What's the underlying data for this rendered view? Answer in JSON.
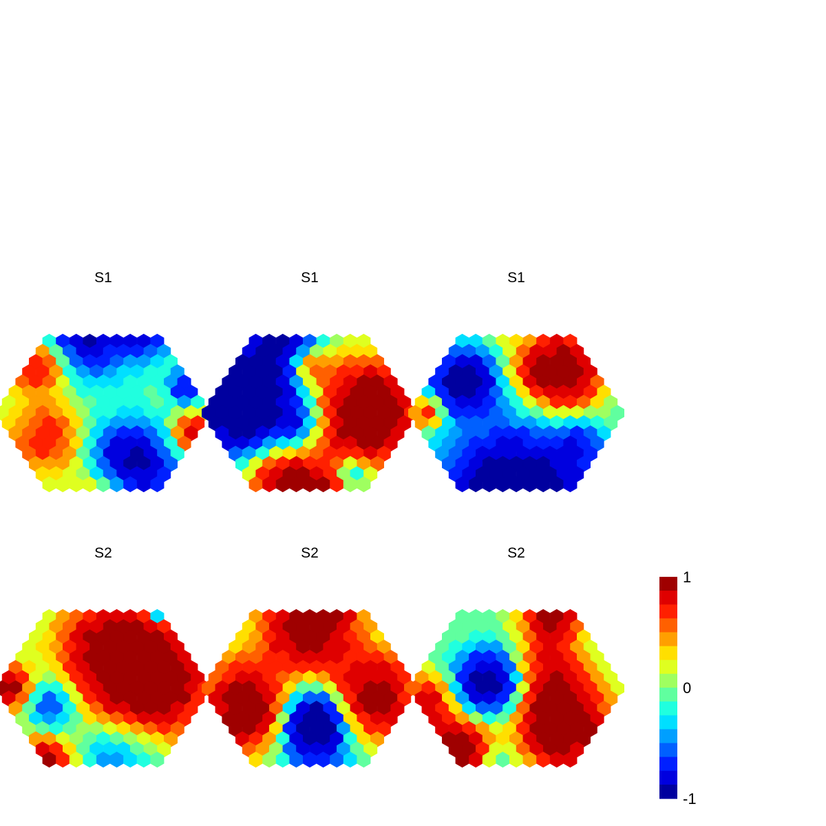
{
  "chart_data": {
    "type": "heatmap",
    "colormap": "jet",
    "colorbar": {
      "min": -1,
      "max": 1,
      "tick_labels": [
        "1",
        "0",
        "-1"
      ],
      "tick_values": [
        1,
        0,
        -1
      ],
      "levels": 16
    },
    "grid": "hexagonal",
    "panels": [
      {
        "title": "S1",
        "hotspots": [
          [
            -0.22,
            -0.85,
            -1.7,
            0.35
          ],
          [
            0.25,
            0.55,
            -1.8,
            0.28
          ],
          [
            -0.62,
            -0.5,
            1.4,
            0.22
          ],
          [
            0.45,
            -0.8,
            -1.0,
            0.18
          ],
          [
            -0.55,
            0.25,
            0.9,
            0.25
          ],
          [
            0.05,
            0.85,
            1.2,
            0.25
          ],
          [
            0.85,
            0.2,
            1.3,
            0.12
          ],
          [
            0.8,
            -0.25,
            -1.0,
            0.12
          ]
        ]
      },
      {
        "title": "S1",
        "hotspots": [
          [
            -0.65,
            -0.15,
            -2.2,
            0.38
          ],
          [
            0.55,
            0.0,
            2.2,
            0.32
          ],
          [
            -0.25,
            -0.85,
            -1.5,
            0.22
          ],
          [
            0.05,
            0.9,
            1.7,
            0.28
          ],
          [
            -0.3,
            0.65,
            1.2,
            0.22
          ],
          [
            0.4,
            0.6,
            -1.0,
            0.12
          ],
          [
            0.0,
            -0.45,
            0.9,
            0.12
          ],
          [
            -0.1,
            0.1,
            -0.6,
            0.15
          ]
        ]
      },
      {
        "title": "S1",
        "hotspots": [
          [
            0.0,
            0.95,
            -2.4,
            0.5
          ],
          [
            -0.5,
            -0.3,
            -1.7,
            0.22
          ],
          [
            0.45,
            -0.4,
            2.0,
            0.25
          ],
          [
            -0.1,
            -0.95,
            1.6,
            0.12
          ],
          [
            0.1,
            -0.4,
            0.4,
            0.14
          ],
          [
            -0.85,
            0.0,
            1.2,
            0.1
          ],
          [
            0.6,
            0.3,
            -0.6,
            0.15
          ]
        ]
      },
      {
        "title": "S2",
        "hotspots": [
          [
            0.15,
            -0.3,
            2.0,
            0.38
          ],
          [
            -0.5,
            0.15,
            -0.9,
            0.2
          ],
          [
            0.1,
            0.7,
            -0.6,
            0.25
          ],
          [
            -0.6,
            0.8,
            2.0,
            0.2
          ],
          [
            -0.9,
            0.0,
            1.6,
            0.15
          ],
          [
            0.6,
            0.0,
            1.4,
            0.3
          ],
          [
            0.55,
            -0.75,
            -1.6,
            0.08
          ],
          [
            0.4,
            -0.2,
            0.7,
            0.18
          ]
        ]
      },
      {
        "title": "S2",
        "hotspots": [
          [
            0.05,
            0.35,
            -2.0,
            0.2
          ],
          [
            0.0,
            -0.6,
            2.0,
            0.3
          ],
          [
            -0.6,
            0.2,
            2.0,
            0.3
          ],
          [
            0.6,
            0.1,
            1.8,
            0.3
          ],
          [
            0.05,
            0.4,
            -0.6,
            0.45
          ],
          [
            0.35,
            -0.9,
            0.8,
            0.12
          ]
        ]
      },
      {
        "title": "S2",
        "hotspots": [
          [
            -0.25,
            -0.05,
            -1.8,
            0.22
          ],
          [
            0.45,
            0.35,
            2.2,
            0.28
          ],
          [
            -0.6,
            0.6,
            2.0,
            0.22
          ],
          [
            0.3,
            -0.2,
            1.0,
            0.25
          ],
          [
            -0.85,
            0.1,
            1.2,
            0.15
          ],
          [
            -0.2,
            0.8,
            -0.6,
            0.15
          ],
          [
            0.35,
            -0.75,
            1.8,
            0.18
          ]
        ]
      }
    ]
  }
}
